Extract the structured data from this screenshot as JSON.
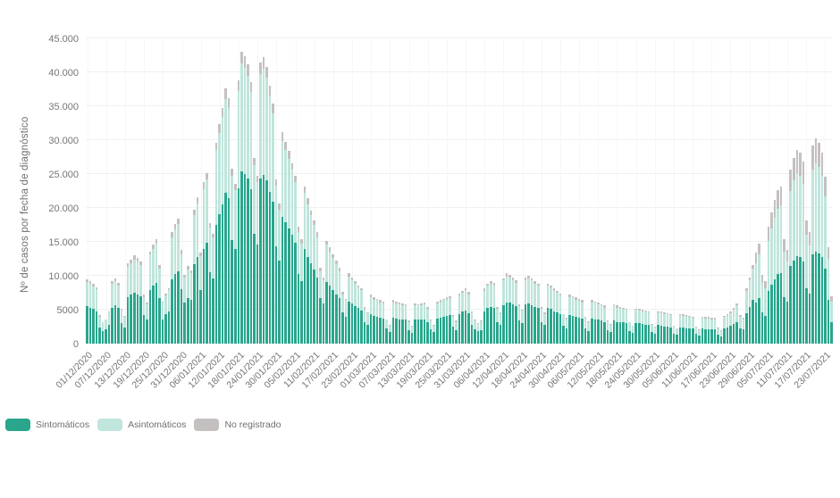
{
  "chart": {
    "y_axis_title": "Nº de casos por fecha de diagnóstico"
  },
  "chart_data": {
    "type": "bar",
    "stacked": true,
    "title": "",
    "xlabel": "",
    "ylabel": "Nº de casos por fecha de diagnóstico",
    "ylim": [
      0,
      45000
    ],
    "grid": "horizontal-faint",
    "legend_position": "bottom-left",
    "x_count": 237,
    "x_tick_every": 6,
    "x_tick_labels": [
      "01/12/2020",
      "07/12/2020",
      "13/12/2020",
      "19/12/2020",
      "25/12/2020",
      "31/12/2020",
      "06/01/2021",
      "12/01/2021",
      "18/01/2021",
      "24/01/2021",
      "30/01/2021",
      "05/02/2021",
      "11/02/2021",
      "17/02/2021",
      "23/02/2021",
      "01/03/2021",
      "07/03/2021",
      "13/03/2021",
      "19/03/2021",
      "25/03/2021",
      "31/03/2021",
      "06/04/2021",
      "12/04/2021",
      "18/04/2021",
      "24/04/2021",
      "30/04/2021",
      "06/05/2021",
      "12/05/2021",
      "18/05/2021",
      "24/05/2021",
      "30/05/2021",
      "05/06/2021",
      "11/06/2021",
      "17/06/2021",
      "23/06/2021",
      "29/06/2021",
      "05/07/2021",
      "11/07/2021",
      "17/07/2021",
      "23/07/2021"
    ],
    "y_ticks": [
      {
        "v": 0,
        "label": "0"
      },
      {
        "v": 5000,
        "label": "5000"
      },
      {
        "v": 10000,
        "label": "10.000"
      },
      {
        "v": 15000,
        "label": "15.000"
      },
      {
        "v": 20000,
        "label": "20.000"
      },
      {
        "v": 25000,
        "label": "25.000"
      },
      {
        "v": 30000,
        "label": "30.000"
      },
      {
        "v": 35000,
        "label": "35.000"
      },
      {
        "v": 40000,
        "label": "40.000"
      },
      {
        "v": 45000,
        "label": "45.000"
      }
    ],
    "series": [
      {
        "key": "sintomaticos",
        "name": "Sintomáticos",
        "color": "#29a68c",
        "values": [
          5500,
          5300,
          5100,
          4800,
          2400,
          1900,
          2100,
          2800,
          5300,
          5600,
          5200,
          3000,
          2400,
          6800,
          7200,
          7500,
          7300,
          7000,
          4200,
          3500,
          7900,
          8500,
          8900,
          6700,
          3600,
          4300,
          4800,
          9500,
          10200,
          10700,
          8000,
          6000,
          6700,
          6400,
          11700,
          12700,
          7900,
          14000,
          14900,
          10500,
          9600,
          17500,
          19100,
          20500,
          22200,
          21400,
          15200,
          13900,
          22900,
          25400,
          25000,
          24300,
          22800,
          16200,
          14600,
          24400,
          24900,
          24100,
          22400,
          20900,
          14300,
          12200,
          18700,
          17900,
          17000,
          16000,
          14900,
          10300,
          9200,
          13900,
          12800,
          11800,
          10900,
          9800,
          6700,
          5900,
          9100,
          8500,
          7900,
          7300,
          6700,
          4600,
          4000,
          6200,
          5900,
          5500,
          5200,
          4900,
          3200,
          2800,
          4300,
          4100,
          4000,
          3800,
          3700,
          2200,
          1700,
          3800,
          3700,
          3600,
          3500,
          3500,
          2000,
          1600,
          3500,
          3500,
          3500,
          3600,
          3200,
          2100,
          1700,
          3700,
          3800,
          4000,
          4100,
          4200,
          2500,
          2000,
          4400,
          4700,
          4900,
          4500,
          2800,
          2100,
          1800,
          2000,
          4800,
          5200,
          5400,
          5300,
          3200,
          2700,
          5700,
          6100,
          6000,
          5800,
          5500,
          3400,
          3000,
          5800,
          5900,
          5700,
          5400,
          5200,
          3200,
          2700,
          5200,
          5100,
          4800,
          4600,
          4400,
          2600,
          2200,
          4200,
          4100,
          3900,
          3800,
          3700,
          2300,
          1900,
          3700,
          3600,
          3500,
          3400,
          3200,
          2000,
          1700,
          3400,
          3200,
          3100,
          3100,
          3000,
          1900,
          1600,
          3000,
          3000,
          2900,
          2800,
          2800,
          1700,
          1400,
          2800,
          2600,
          2500,
          2500,
          2400,
          1500,
          1300,
          2400,
          2400,
          2300,
          2300,
          2200,
          1400,
          1200,
          2200,
          2100,
          2100,
          2100,
          2100,
          1300,
          1100,
          2300,
          2400,
          2600,
          2900,
          3200,
          2300,
          2100,
          4500,
          5400,
          6400,
          6000,
          6700,
          4600,
          4100,
          7700,
          8700,
          9500,
          10200,
          10400,
          6900,
          6200,
          11500,
          12300,
          12900,
          12700,
          12100,
          8200,
          7400,
          13100,
          13600,
          13300,
          12700,
          11100,
          6400,
          3200
        ]
      },
      {
        "key": "asintomaticos",
        "name": "Asintomáticos",
        "color": "#bfe5dc",
        "values": [
          3600,
          3500,
          3300,
          3200,
          1600,
          1200,
          1400,
          1800,
          3500,
          3600,
          3400,
          2000,
          1600,
          4500,
          4700,
          4900,
          4800,
          4600,
          2700,
          2300,
          5200,
          5500,
          5900,
          4400,
          2400,
          2800,
          3100,
          6200,
          6700,
          7000,
          5200,
          3800,
          4200,
          4000,
          7300,
          8000,
          5000,
          8800,
          9300,
          6600,
          6000,
          11000,
          12000,
          12900,
          13900,
          13400,
          9500,
          8700,
          14400,
          15900,
          15700,
          15200,
          14300,
          10100,
          9200,
          15300,
          15600,
          15100,
          14100,
          13100,
          9000,
          7600,
          11200,
          10700,
          10200,
          9600,
          8900,
          6200,
          5500,
          8400,
          7700,
          7100,
          6600,
          5900,
          4000,
          3500,
          5500,
          5100,
          4800,
          4400,
          4000,
          2700,
          2400,
          3700,
          3500,
          3300,
          3100,
          3000,
          1900,
          1700,
          2600,
          2400,
          2400,
          2300,
          2200,
          1300,
          1000,
          2300,
          2200,
          2200,
          2100,
          2100,
          1200,
          900,
          2100,
          2100,
          2100,
          2200,
          1900,
          1300,
          1000,
          2200,
          2300,
          2400,
          2400,
          2500,
          1500,
          1200,
          2700,
          2800,
          3000,
          2800,
          1800,
          1300,
          1100,
          1300,
          3000,
          3300,
          3400,
          3300,
          2000,
          1700,
          3600,
          3800,
          3800,
          3600,
          3500,
          2100,
          1900,
          3600,
          3700,
          3600,
          3400,
          3300,
          2000,
          1700,
          3300,
          3200,
          3000,
          2900,
          2700,
          1700,
          1400,
          2700,
          2700,
          2600,
          2500,
          2400,
          1500,
          1300,
          2400,
          2400,
          2300,
          2200,
          2100,
          1300,
          1100,
          2200,
          2100,
          2100,
          2000,
          2000,
          1200,
          1000,
          2000,
          1900,
          1900,
          1900,
          1800,
          1100,
          1000,
          1800,
          1900,
          1800,
          1800,
          1800,
          1100,
          900,
          1800,
          1700,
          1700,
          1600,
          1600,
          1000,
          800,
          1600,
          1600,
          1600,
          1500,
          1500,
          1000,
          800,
          1600,
          1800,
          1900,
          2100,
          2400,
          1700,
          1500,
          3300,
          3900,
          4600,
          5800,
          6400,
          4400,
          4000,
          7400,
          8300,
          9100,
          9700,
          10000,
          6600,
          5900,
          11000,
          11800,
          12300,
          12100,
          11500,
          7800,
          7100,
          12600,
          13000,
          12700,
          12100,
          10600,
          6100,
          3000
        ]
      },
      {
        "key": "no-registrado",
        "name": "No registrado",
        "color": "#c5c0c0",
        "values": [
          400,
          400,
          400,
          300,
          200,
          100,
          100,
          200,
          400,
          400,
          400,
          200,
          100,
          500,
          500,
          600,
          500,
          500,
          300,
          300,
          500,
          600,
          600,
          500,
          200,
          300,
          300,
          700,
          700,
          700,
          600,
          400,
          500,
          400,
          800,
          900,
          500,
          1000,
          1000,
          700,
          600,
          1100,
          1300,
          1400,
          1500,
          1400,
          1100,
          1000,
          1500,
          1700,
          1700,
          1700,
          1500,
          1100,
          1000,
          1700,
          1700,
          1600,
          1500,
          1400,
          900,
          800,
          1300,
          1200,
          1200,
          1000,
          1000,
          700,
          700,
          900,
          900,
          700,
          700,
          700,
          500,
          400,
          600,
          600,
          500,
          500,
          500,
          300,
          200,
          500,
          400,
          400,
          300,
          300,
          300,
          100,
          300,
          300,
          200,
          300,
          300,
          100,
          100,
          300,
          300,
          200,
          300,
          200,
          200,
          100,
          300,
          200,
          300,
          200,
          300,
          100,
          100,
          300,
          300,
          200,
          300,
          300,
          200,
          200,
          300,
          300,
          300,
          300,
          200,
          200,
          100,
          100,
          400,
          300,
          400,
          400,
          200,
          200,
          300,
          500,
          400,
          400,
          400,
          300,
          100,
          400,
          400,
          300,
          400,
          300,
          200,
          200,
          300,
          300,
          400,
          300,
          300,
          100,
          200,
          300,
          200,
          300,
          300,
          300,
          100,
          100,
          300,
          200,
          200,
          200,
          300,
          100,
          100,
          200,
          300,
          200,
          200,
          200,
          100,
          100,
          200,
          200,
          200,
          200,
          200,
          100,
          100,
          200,
          200,
          300,
          200,
          200,
          100,
          100,
          200,
          200,
          200,
          200,
          200,
          100,
          100,
          200,
          200,
          200,
          200,
          200,
          100,
          100,
          200,
          200,
          300,
          300,
          300,
          200,
          200,
          400,
          500,
          600,
          1600,
          1700,
          1200,
          1100,
          2100,
          2400,
          2600,
          2700,
          2800,
          1900,
          1700,
          3100,
          3300,
          3400,
          3400,
          3200,
          2200,
          1900,
          3500,
          3600,
          3600,
          3400,
          2900,
          1700,
          800
        ]
      }
    ]
  }
}
